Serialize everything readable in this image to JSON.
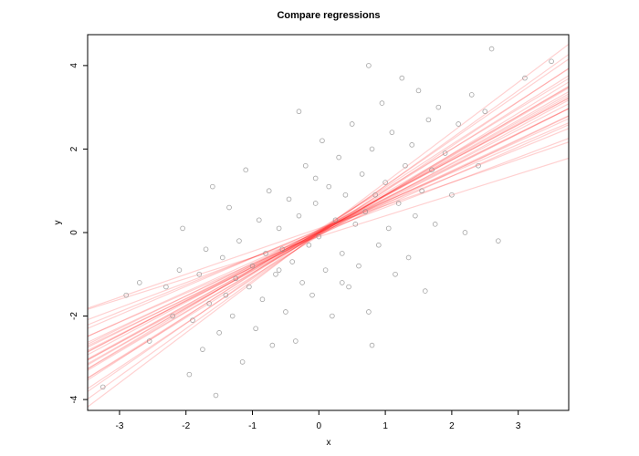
{
  "chart_data": {
    "type": "scatter",
    "title": "Compare regressions",
    "xlabel": "x",
    "ylabel": "y",
    "xlim": [
      -3.48,
      3.76
    ],
    "ylim": [
      -4.26,
      4.74
    ],
    "xticks": [
      -3,
      -2,
      -1,
      0,
      1,
      2,
      3
    ],
    "yticks": [
      -4,
      -2,
      0,
      2,
      4
    ],
    "point_color": "#8c8c8c",
    "line_color": "#ff0000",
    "x": [
      -3.25,
      -2.9,
      -2.7,
      -2.55,
      -2.3,
      -2.2,
      -2.1,
      -2.05,
      -1.95,
      -1.9,
      -1.8,
      -1.75,
      -1.7,
      -1.65,
      -1.6,
      -1.55,
      -1.5,
      -1.45,
      -1.4,
      -1.35,
      -1.3,
      -1.25,
      -1.2,
      -1.15,
      -1.1,
      -1.05,
      -1.0,
      -0.95,
      -0.9,
      -0.85,
      -0.8,
      -0.75,
      -0.7,
      -0.65,
      -0.6,
      -0.55,
      -0.5,
      -0.45,
      -0.4,
      -0.35,
      -0.3,
      -0.25,
      -0.2,
      -0.15,
      -0.1,
      -0.05,
      0.0,
      0.05,
      0.1,
      0.15,
      0.2,
      0.25,
      0.3,
      0.35,
      0.4,
      0.45,
      0.5,
      0.55,
      0.6,
      0.65,
      0.7,
      0.75,
      0.8,
      0.85,
      0.9,
      0.95,
      1.0,
      1.05,
      1.1,
      1.15,
      1.2,
      1.25,
      1.3,
      1.35,
      1.4,
      1.45,
      1.5,
      1.55,
      1.6,
      1.65,
      1.7,
      1.75,
      1.8,
      1.9,
      2.0,
      2.1,
      2.2,
      2.3,
      2.4,
      2.5,
      2.6,
      2.7,
      3.1,
      3.5,
      0.8,
      -0.3,
      0.75,
      -0.05,
      0.35,
      -0.6
    ],
    "values": [
      -3.7,
      -1.5,
      -1.2,
      -2.6,
      -1.3,
      -2.0,
      -0.9,
      0.1,
      -3.4,
      -2.1,
      -1.0,
      -2.8,
      -0.4,
      -1.7,
      1.1,
      -3.9,
      -2.4,
      -0.6,
      -1.5,
      0.6,
      -2.0,
      -1.1,
      -0.2,
      -3.1,
      1.5,
      -1.3,
      -0.8,
      -2.3,
      0.3,
      -1.6,
      -0.5,
      1.0,
      -2.7,
      -1.0,
      0.1,
      -0.4,
      -1.9,
      0.8,
      -0.7,
      -2.6,
      0.4,
      -1.2,
      1.6,
      -0.3,
      -1.5,
      0.7,
      -0.1,
      2.2,
      -0.9,
      1.1,
      -2.0,
      0.3,
      1.8,
      -0.5,
      0.9,
      -1.3,
      2.6,
      0.2,
      -0.8,
      1.4,
      0.5,
      -1.9,
      2.0,
      0.9,
      -0.3,
      3.1,
      1.2,
      0.1,
      2.4,
      -1.0,
      0.7,
      3.7,
      1.6,
      -0.6,
      2.1,
      0.4,
      3.4,
      1.0,
      -1.4,
      2.7,
      1.5,
      0.2,
      3.0,
      1.9,
      0.9,
      2.6,
      0.0,
      3.3,
      1.6,
      2.9,
      4.4,
      -0.2,
      3.7,
      4.1,
      -2.7,
      2.9,
      4.0,
      1.3,
      -1.2,
      -0.9
    ],
    "regression_lines": [
      {
        "intercept": 0.0,
        "slope": 0.6
      },
      {
        "intercept": 0.05,
        "slope": 0.65
      },
      {
        "intercept": -0.05,
        "slope": 0.7
      },
      {
        "intercept": 0.02,
        "slope": 0.72
      },
      {
        "intercept": -0.02,
        "slope": 0.75
      },
      {
        "intercept": 0.04,
        "slope": 0.78
      },
      {
        "intercept": -0.04,
        "slope": 0.8
      },
      {
        "intercept": 0.0,
        "slope": 0.82
      },
      {
        "intercept": 0.06,
        "slope": 0.84
      },
      {
        "intercept": -0.06,
        "slope": 0.86
      },
      {
        "intercept": 0.01,
        "slope": 0.88
      },
      {
        "intercept": -0.01,
        "slope": 0.9
      },
      {
        "intercept": 0.03,
        "slope": 0.92
      },
      {
        "intercept": -0.03,
        "slope": 0.94
      },
      {
        "intercept": 0.08,
        "slope": 0.96
      },
      {
        "intercept": -0.08,
        "slope": 0.98
      },
      {
        "intercept": 0.0,
        "slope": 1.0
      },
      {
        "intercept": 0.05,
        "slope": 1.03
      },
      {
        "intercept": -0.05,
        "slope": 1.06
      },
      {
        "intercept": 0.02,
        "slope": 1.1
      },
      {
        "intercept": -0.02,
        "slope": 1.14
      },
      {
        "intercept": 0.1,
        "slope": 0.55
      },
      {
        "intercept": -0.1,
        "slope": 0.5
      },
      {
        "intercept": 0.0,
        "slope": 1.2
      },
      {
        "intercept": 0.07,
        "slope": 0.68
      },
      {
        "intercept": -0.07,
        "slope": 0.76
      },
      {
        "intercept": 0.03,
        "slope": 0.85
      },
      {
        "intercept": -0.03,
        "slope": 0.93
      },
      {
        "intercept": 0.0,
        "slope": 0.79
      },
      {
        "intercept": 0.0,
        "slope": 0.87
      }
    ]
  }
}
